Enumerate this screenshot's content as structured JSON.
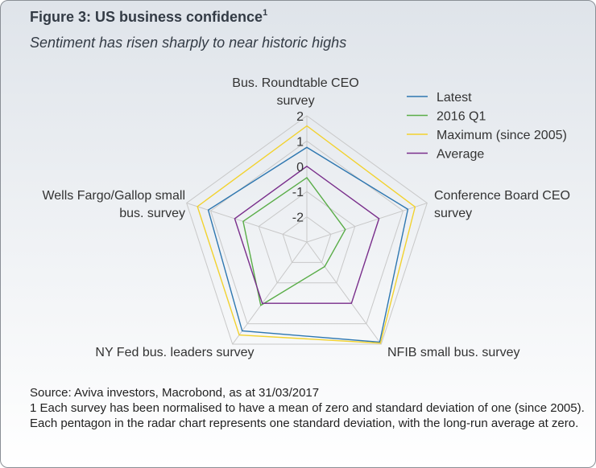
{
  "header": {
    "title": "Figure 3: US business confidence",
    "title_footnote_mark": "1",
    "subtitle": "Sentiment has risen sharply to near historic highs"
  },
  "chart_data": {
    "type": "radar",
    "axes": [
      "Bus. Roundtable CEO survey",
      "Conference Board CEO survey",
      "NFIB small bus. survey",
      "NY Fed bus. leaders survey",
      "Wells Fargo/Gallop small bus. survey"
    ],
    "axis_label_lines": [
      [
        "Bus. Roundtable CEO",
        "survey"
      ],
      [
        "Conference Board CEO",
        "survey"
      ],
      [
        "NFIB small bus. survey"
      ],
      [
        "NY Fed bus. leaders survey"
      ],
      [
        "Wells Fargo/Gallop small",
        "bus. survey"
      ]
    ],
    "rlim": [
      -3,
      2
    ],
    "ticks": [
      "2",
      "1",
      "0",
      "-1",
      "-2"
    ],
    "tick_values": [
      2,
      1,
      0,
      -1,
      -2
    ],
    "series": [
      {
        "name": "Latest",
        "color": "#2e77b0",
        "values": [
          0.75,
          1.2,
          1.9,
          1.35,
          1.1
        ]
      },
      {
        "name": "2016 Q1",
        "color": "#5aad48",
        "values": [
          -0.45,
          -1.4,
          -1.8,
          0.1,
          -0.35
        ]
      },
      {
        "name": "Maximum (since 2005)",
        "color": "#f2d22e",
        "values": [
          1.6,
          1.5,
          1.95,
          1.55,
          1.55
        ]
      },
      {
        "name": "Average",
        "color": "#7a2f8c",
        "values": [
          0.0,
          0.0,
          0.0,
          0.0,
          0.0
        ]
      }
    ],
    "legend_position": "top-right"
  },
  "footer": {
    "source": "Source: Aviva investors, Macrobond, as at 31/03/2017",
    "note": "1 Each survey has been normalised to have a mean of zero and standard deviation of one (since 2005). Each pentagon in the radar chart represents one standard deviation, with the long-run average at zero."
  }
}
